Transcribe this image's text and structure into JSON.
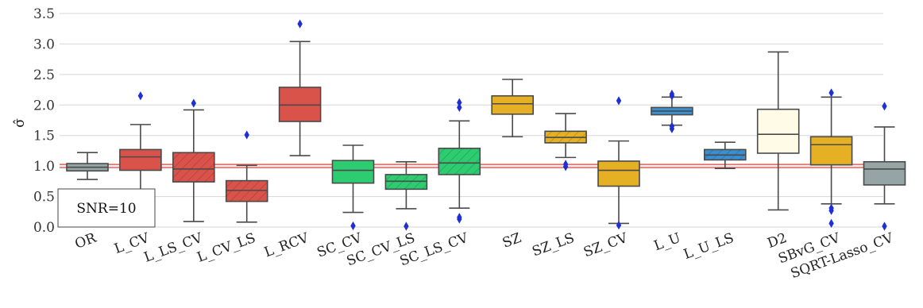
{
  "chart_data": {
    "type": "boxplot",
    "ylabel": "σ̂",
    "ylim": [
      0,
      3.5
    ],
    "yticks": [
      "0.0",
      "0.5",
      "1.0",
      "1.5",
      "2.0",
      "2.5",
      "3.0",
      "3.5"
    ],
    "grid": "horizontal",
    "reference_line": 1.0,
    "reference_color": "#d9463a",
    "annotation": "SNR=10",
    "categories": [
      "OR",
      "L_CV",
      "L_LS_CV",
      "L_CV_LS",
      "L_RCV",
      "SC_CV",
      "SC_CV_LS",
      "SC_LS_CV",
      "SZ",
      "SZ_LS",
      "SZ_CV",
      "L_U",
      "L_U_LS",
      "D2",
      "SBvG_CV",
      "SQRT-Lasso_CV"
    ],
    "boxes": [
      {
        "name": "OR",
        "color": "#95a5a6",
        "hatch": false,
        "whislo": 0.78,
        "q1": 0.92,
        "med": 0.98,
        "q3": 1.04,
        "whishi": 1.22,
        "fliers": []
      },
      {
        "name": "L_CV",
        "color": "#d9534a",
        "hatch": false,
        "whislo": 0.55,
        "q1": 0.93,
        "med": 1.15,
        "q3": 1.27,
        "whishi": 1.68,
        "fliers": [
          2.15
        ]
      },
      {
        "name": "L_LS_CV",
        "color": "#d9534a",
        "hatch": true,
        "whislo": 0.09,
        "q1": 0.74,
        "med": 0.95,
        "q3": 1.22,
        "whishi": 1.92,
        "fliers": [
          2.03
        ]
      },
      {
        "name": "L_CV_LS",
        "color": "#d9534a",
        "hatch": true,
        "whislo": 0.08,
        "q1": 0.42,
        "med": 0.6,
        "q3": 0.76,
        "whishi": 1.01,
        "fliers": [
          1.51
        ]
      },
      {
        "name": "L_RCV",
        "color": "#d9534a",
        "hatch": false,
        "whislo": 1.17,
        "q1": 1.73,
        "med": 2.0,
        "q3": 2.29,
        "whishi": 3.04,
        "fliers": [
          3.33
        ]
      },
      {
        "name": "SC_CV",
        "color": "#2ecc71",
        "hatch": false,
        "whislo": 0.24,
        "q1": 0.72,
        "med": 0.93,
        "q3": 1.09,
        "whishi": 1.34,
        "fliers": [
          0.02
        ]
      },
      {
        "name": "SC_CV_LS",
        "color": "#2ecc71",
        "hatch": true,
        "whislo": 0.3,
        "q1": 0.62,
        "med": 0.75,
        "q3": 0.86,
        "whishi": 1.07,
        "fliers": [
          0.0
        ]
      },
      {
        "name": "SC_LS_CV",
        "color": "#2ecc71",
        "hatch": true,
        "whislo": 0.31,
        "q1": 0.86,
        "med": 1.05,
        "q3": 1.29,
        "whishi": 1.74,
        "fliers": [
          0.13,
          0.16,
          1.96,
          2.04
        ]
      },
      {
        "name": "SZ",
        "color": "#e6b025",
        "hatch": false,
        "whislo": 1.48,
        "q1": 1.85,
        "med": 2.02,
        "q3": 2.15,
        "whishi": 2.42,
        "fliers": []
      },
      {
        "name": "SZ_LS",
        "color": "#e6b025",
        "hatch": true,
        "whislo": 1.14,
        "q1": 1.38,
        "med": 1.47,
        "q3": 1.57,
        "whishi": 1.86,
        "fliers": [
          0.99,
          1.03
        ]
      },
      {
        "name": "SZ_CV",
        "color": "#e6b025",
        "hatch": false,
        "whislo": 0.06,
        "q1": 0.67,
        "med": 0.93,
        "q3": 1.08,
        "whishi": 1.41,
        "fliers": [
          0.03,
          2.07
        ]
      },
      {
        "name": "L_U",
        "color": "#3a8fd1",
        "hatch": false,
        "whislo": 1.67,
        "q1": 1.84,
        "med": 1.9,
        "q3": 1.96,
        "whishi": 2.13,
        "fliers": [
          1.61,
          1.65,
          2.15,
          2.18
        ]
      },
      {
        "name": "L_U_LS",
        "color": "#3a8fd1",
        "hatch": true,
        "whislo": 0.96,
        "q1": 1.1,
        "med": 1.18,
        "q3": 1.27,
        "whishi": 1.39,
        "fliers": []
      },
      {
        "name": "D2",
        "color": "#fffbe6",
        "hatch": false,
        "whislo": 0.28,
        "q1": 1.21,
        "med": 1.52,
        "q3": 1.93,
        "whishi": 2.87,
        "fliers": []
      },
      {
        "name": "SBvG_CV",
        "color": "#e6b025",
        "hatch": false,
        "whislo": 0.38,
        "q1": 1.02,
        "med": 1.35,
        "q3": 1.48,
        "whishi": 2.13,
        "fliers": [
          0.06,
          0.27,
          0.31,
          2.2
        ]
      },
      {
        "name": "SQRT-Lasso_CV",
        "color": "#95a5a6",
        "hatch": false,
        "whislo": 0.38,
        "q1": 0.69,
        "med": 0.95,
        "q3": 1.07,
        "whishi": 1.64,
        "fliers": [
          0.0,
          1.98
        ]
      }
    ]
  }
}
